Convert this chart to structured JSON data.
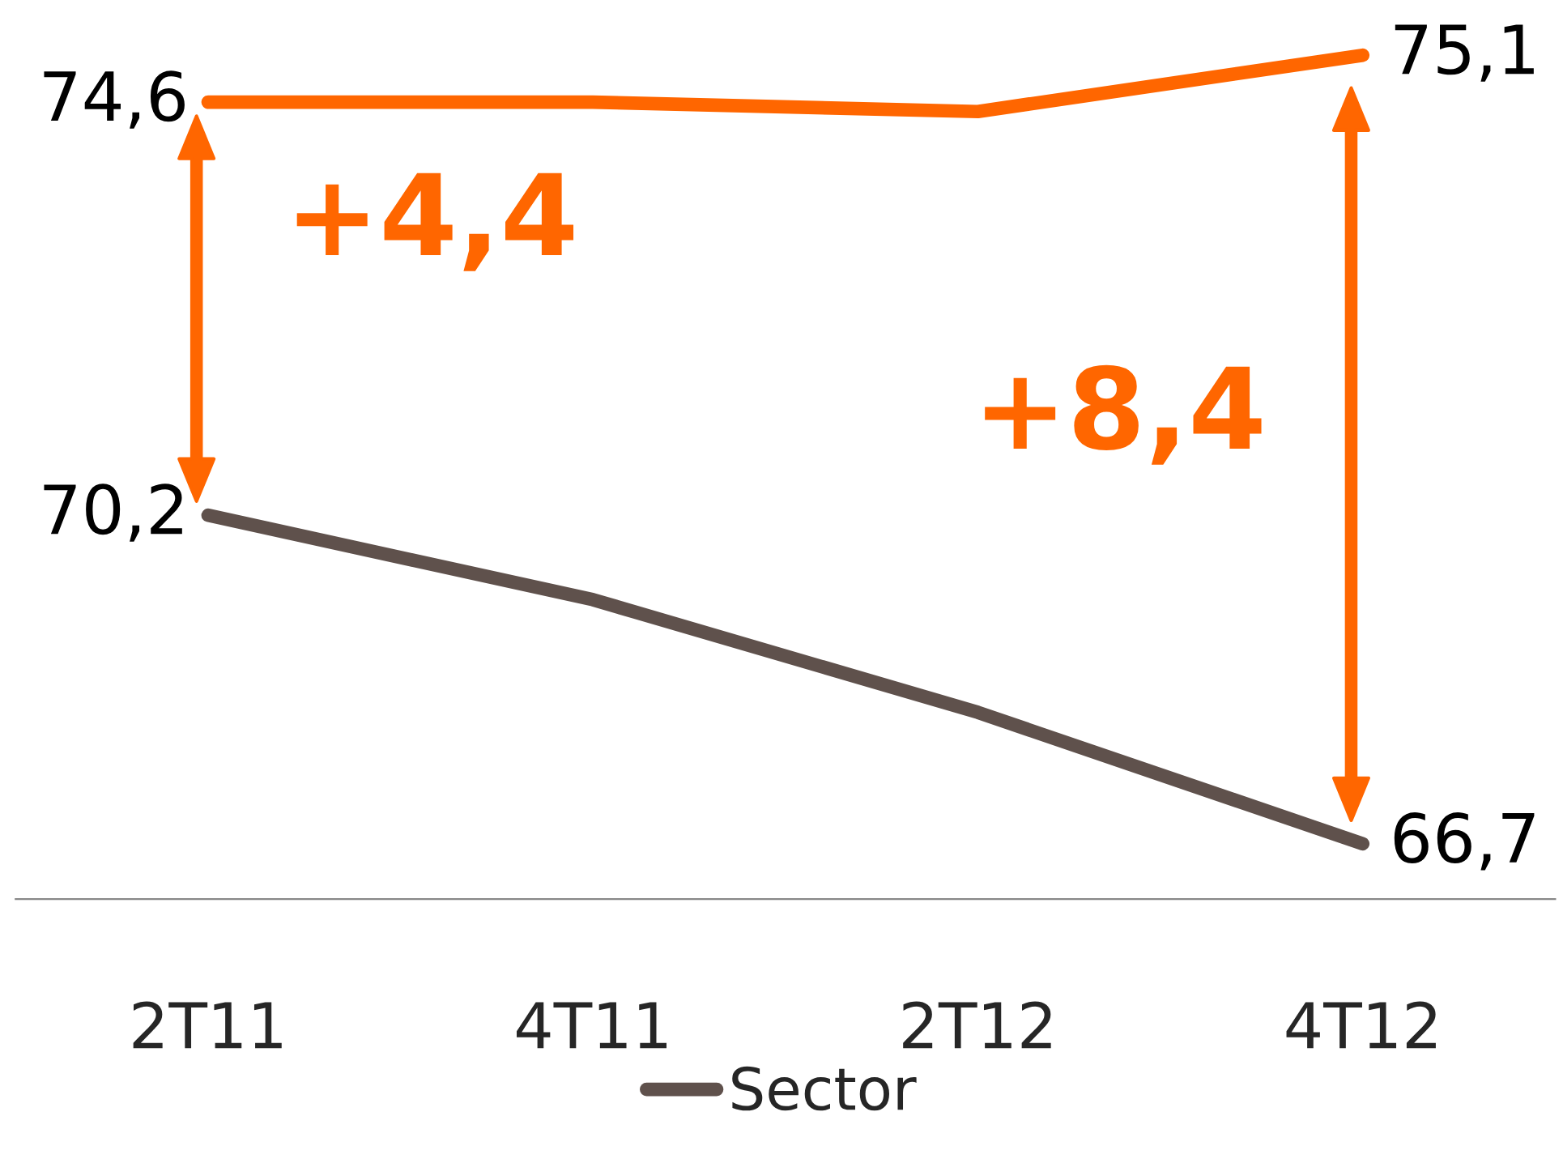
{
  "chart_data": {
    "type": "line",
    "categories": [
      "2T11",
      "4T11",
      "2T12",
      "4T12"
    ],
    "series": [
      {
        "color": "#ff6600",
        "values": [
          74.6,
          74.6,
          74.5,
          75.1
        ],
        "value_labels": [
          "74,6",
          null,
          null,
          "75,1"
        ]
      },
      {
        "name": "Sector",
        "color": "#5f514c",
        "values": [
          70.2,
          69.3,
          68.1,
          66.7
        ],
        "value_labels": [
          "70,2",
          null,
          null,
          "66,7"
        ]
      }
    ],
    "tick_labels": "x",
    "grid": false,
    "legend": "bottom",
    "marker": "none",
    "line_style": "solid",
    "annotations": [
      "+4,4",
      "+8,4"
    ]
  }
}
